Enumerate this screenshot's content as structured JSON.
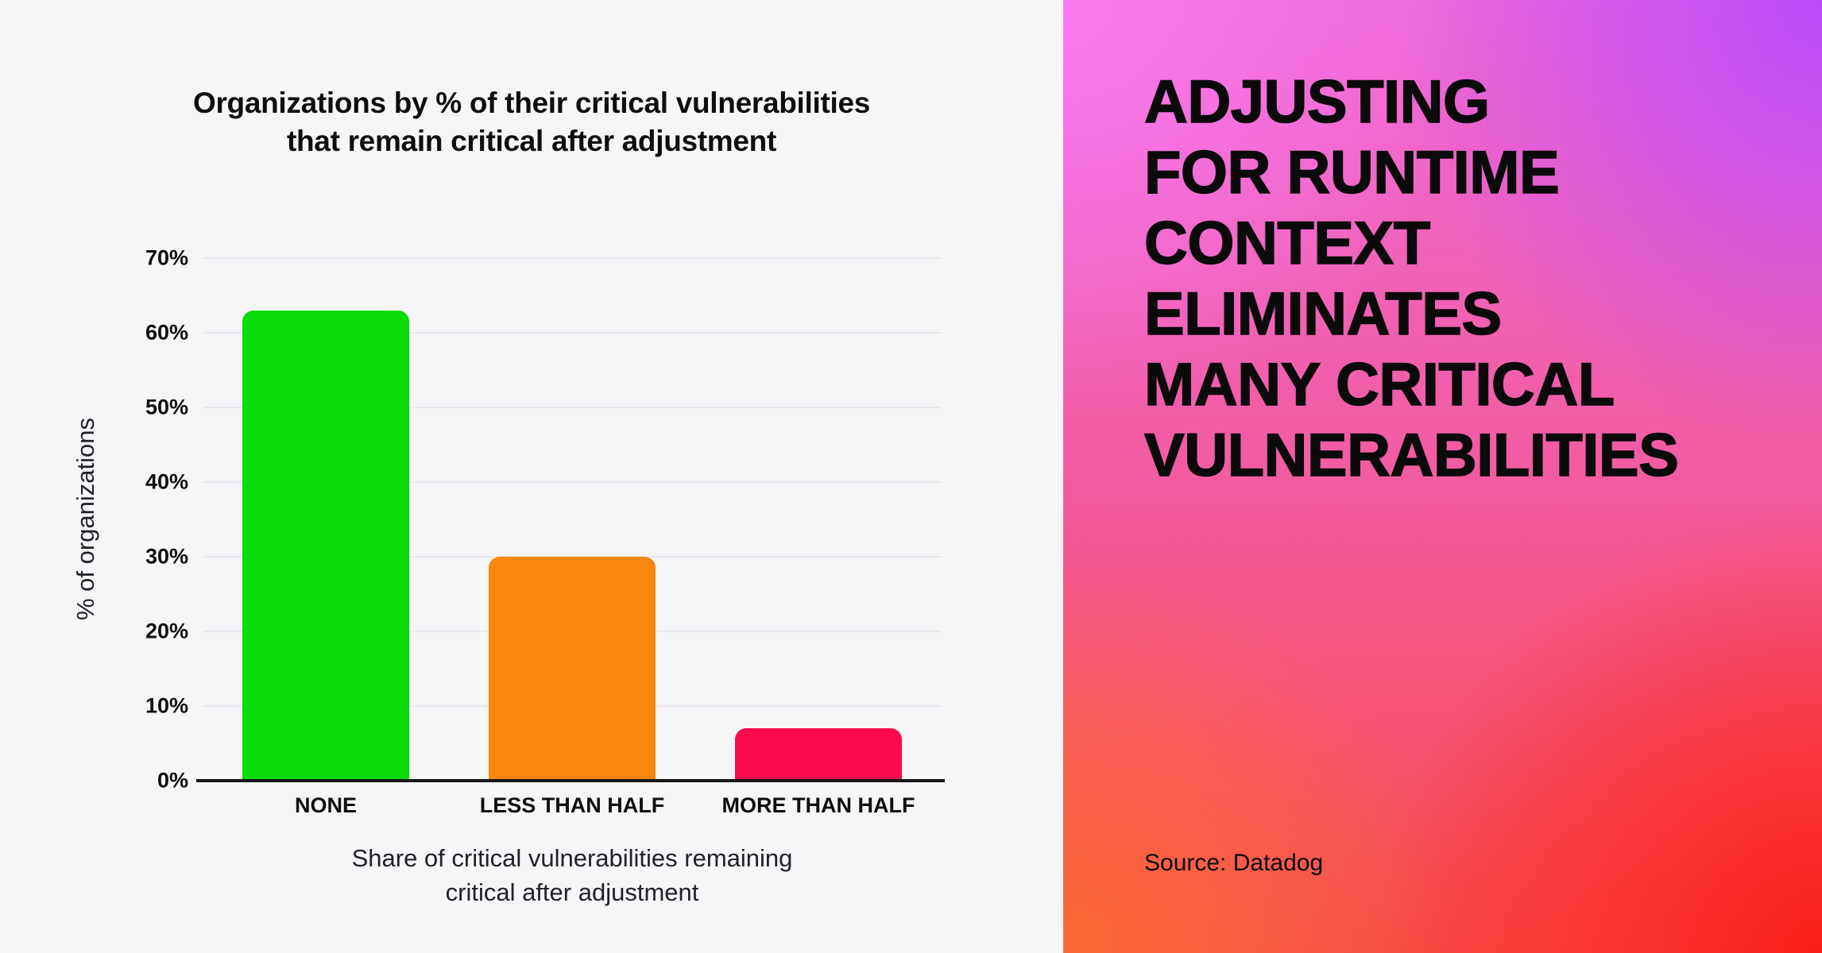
{
  "chart_data": {
    "type": "bar",
    "title": "Organizations by % of their critical vulnerabilities that remain critical after adjustment",
    "title_lines": [
      "Organizations by % of their critical vulnerabilities",
      "that remain critical after adjustment"
    ],
    "categories": [
      "NONE",
      "LESS THAN HALF",
      "MORE THAN HALF"
    ],
    "values": [
      63,
      30,
      7
    ],
    "bar_colors": [
      "#0BDB0B",
      "#F9860E",
      "#FB0A4E"
    ],
    "ylabel": "% of organizations",
    "xlabel": "Share of critical vulnerabilities remaining critical after adjustment",
    "xlabel_lines": [
      "Share of critical vulnerabilities remaining",
      "critical after adjustment"
    ],
    "y_ticks": [
      "0%",
      "10%",
      "20%",
      "30%",
      "40%",
      "50%",
      "60%",
      "70%"
    ],
    "ylim": [
      0,
      70
    ],
    "grid": "horizontal",
    "legend": "none",
    "gridline_color": "#E9E8EC",
    "background_color": "#F6F5F7"
  },
  "right_panel": {
    "headline": "ADJUSTING FOR RUNTIME CONTEXT ELIMINATES MANY CRITICAL VULNERABILITIES",
    "headline_lines": [
      "ADJUSTING",
      "FOR RUNTIME",
      "CONTEXT",
      "ELIMINATES",
      "MANY CRITICAL",
      "VULNERABILITIES"
    ],
    "source": "Source: Datadog",
    "text_color": "#0A0A0A",
    "gradient": {
      "top_left": "#FA7AEF",
      "top_right": "#BB4BFA",
      "bottom_left": "#FA6B36",
      "bottom_right": "#FB2019",
      "mid_top": "#EF6AD8",
      "mid_center": "#F25B9D",
      "mid_bottom": "#F84B48"
    }
  }
}
